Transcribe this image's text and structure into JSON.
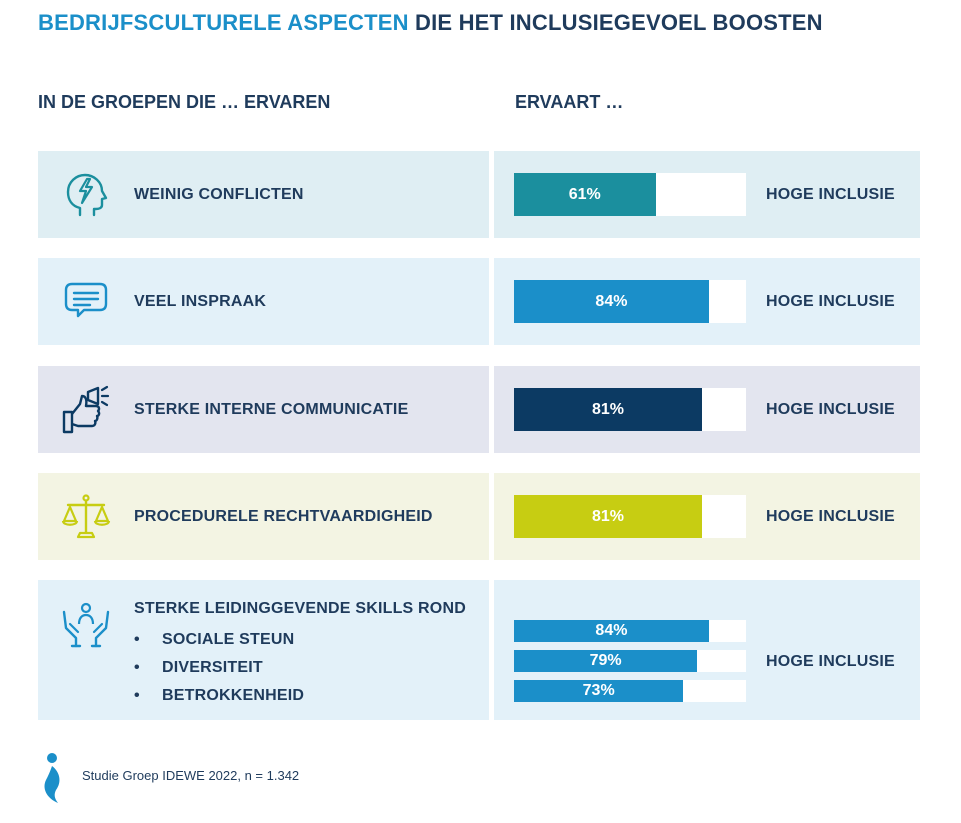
{
  "title": {
    "accent": "BEDRIJFSCULTURELE ASPECTEN",
    "rest": "DIE HET INCLUSIEGEVOEL BOOSTEN"
  },
  "headers": {
    "left": "IN DE GROEPEN DIE … ERVAREN",
    "right": "ERVAART …"
  },
  "colors": {
    "teal": "#1b8f9e",
    "blue": "#1b8fc9",
    "navy": "#0c3a63",
    "lime": "#c7cd12",
    "bg_teal": "#dfeef3",
    "bg_blue": "#e3f1f9",
    "bg_navy": "#e3e5ef",
    "bg_lime": "#f3f4e3"
  },
  "rows": [
    {
      "icon": "head-lightning-icon",
      "label": "WEINIG CONFLICTEN",
      "outcome": "HOGE INCLUSIE",
      "bars": [
        {
          "value": 61,
          "text": "61%"
        }
      ]
    },
    {
      "icon": "speech-bubbles-icon",
      "label": "VEEL INSPRAAK",
      "outcome": "HOGE INCLUSIE",
      "bars": [
        {
          "value": 84,
          "text": "84%"
        }
      ]
    },
    {
      "icon": "megaphone-thumbs-up-icon",
      "label": "STERKE INTERNE COMMUNICATIE",
      "outcome": "HOGE INCLUSIE",
      "bars": [
        {
          "value": 81,
          "text": "81%"
        }
      ]
    },
    {
      "icon": "scales-icon",
      "label": "PROCEDURELE RECHTVAARDIGHEID",
      "outcome": "HOGE INCLUSIE",
      "bars": [
        {
          "value": 81,
          "text": "81%"
        }
      ]
    },
    {
      "icon": "hands-person-icon",
      "label": "STERKE LEIDINGGEVENDE SKILLS ROND",
      "outcome": "HOGE INCLUSIE",
      "bullets": [
        "SOCIALE STEUN",
        "DIVERSITEIT",
        "BETROKKENHEID"
      ],
      "bars": [
        {
          "value": 84,
          "text": "84%"
        },
        {
          "value": 79,
          "text": "79%"
        },
        {
          "value": 73,
          "text": "73%"
        }
      ]
    }
  ],
  "footer": {
    "text": "Studie Groep IDEWE 2022, n = 1.342"
  },
  "chart_data": {
    "type": "bar",
    "categories": [
      "WEINIG CONFLICTEN",
      "VEEL INSPRAAK",
      "STERKE INTERNE COMMUNICATIE",
      "PROCEDURELE RECHTVAARDIGHEID",
      "SOCIALE STEUN",
      "DIVERSITEIT",
      "BETROKKENHEID"
    ],
    "values": [
      61,
      84,
      81,
      81,
      84,
      79,
      73
    ],
    "title": "BEDRIJFSCULTURELE ASPECTEN DIE HET INCLUSIEGEVOEL BOOSTEN",
    "ylim": [
      0,
      100
    ]
  }
}
